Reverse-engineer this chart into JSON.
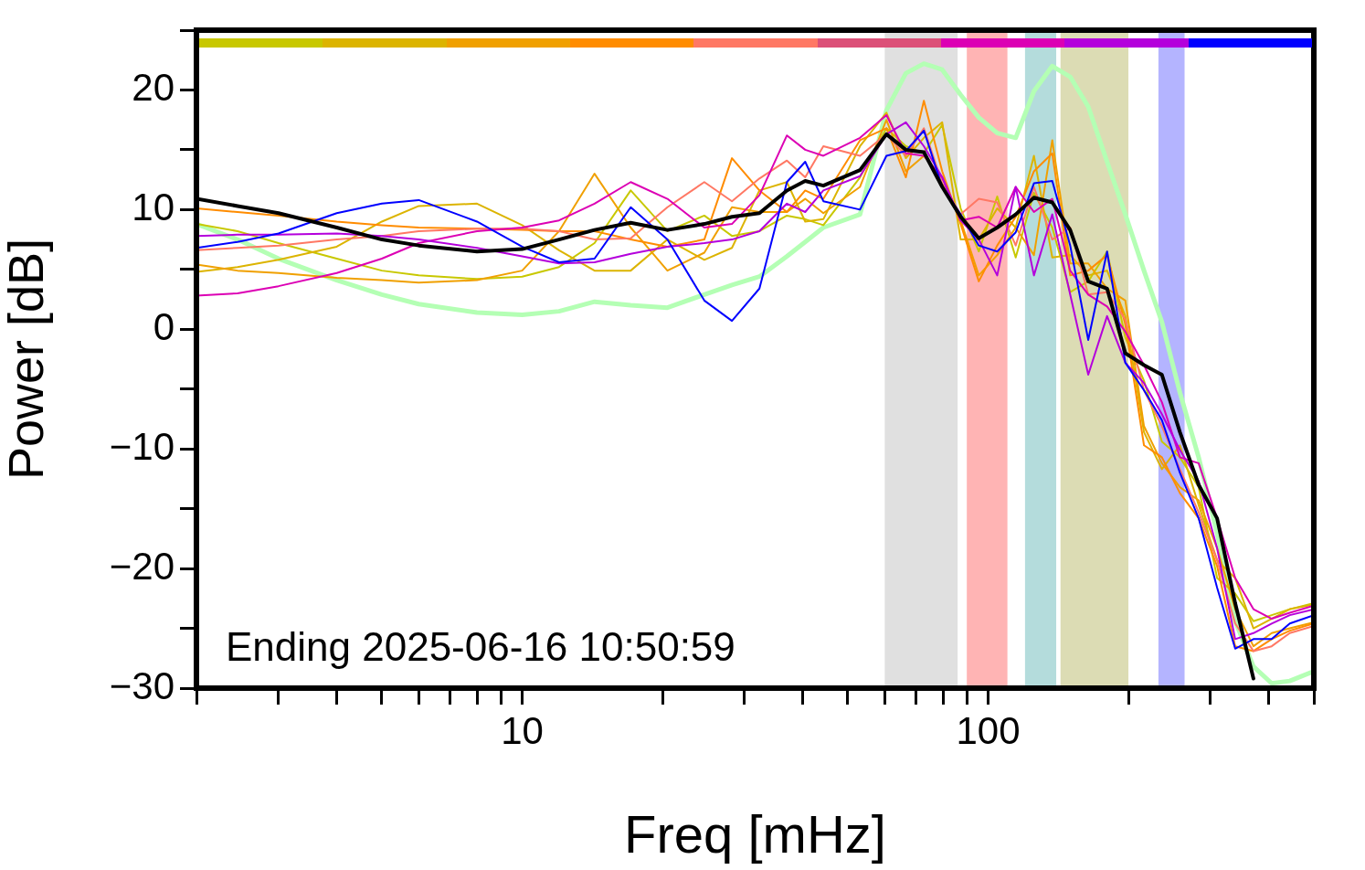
{
  "chart_data": {
    "type": "line",
    "xlabel": "Freq [mHz]",
    "ylabel": "Power [dB]",
    "log": "x",
    "annotations": [
      "Ending 2025-06-16 10:50:59"
    ],
    "x": [
      2,
      2.45,
      3,
      4,
      5,
      6,
      8,
      10,
      12,
      14.3,
      17.1,
      20.5,
      24.6,
      28.2,
      32.3,
      37,
      40.5,
      44.3,
      53.1,
      60.5,
      66.6,
      72.8,
      79.7,
      87.3,
      95.5,
      104.6,
      114.6,
      125.4,
      137.3,
      150,
      164,
      180,
      197,
      216,
      236,
      258,
      283,
      310,
      339,
      371,
      406,
      444,
      500
    ],
    "xlim": [
      2,
      500
    ],
    "xticks": [
      {
        "value": 2,
        "label": null
      },
      {
        "value": 3,
        "label": null
      },
      {
        "value": 4,
        "label": null
      },
      {
        "value": 5,
        "label": null
      },
      {
        "value": 6,
        "label": null
      },
      {
        "value": 7,
        "label": null
      },
      {
        "value": 8,
        "label": null
      },
      {
        "value": 9,
        "label": null
      },
      10,
      {
        "value": 20,
        "label": null
      },
      {
        "value": 30,
        "label": null
      },
      {
        "value": 40,
        "label": null
      },
      {
        "value": 50,
        "label": null
      },
      {
        "value": 60,
        "label": null
      },
      {
        "value": 70,
        "label": null
      },
      {
        "value": 80,
        "label": null
      },
      {
        "value": 90,
        "label": null
      },
      100,
      {
        "value": 200,
        "label": null
      },
      {
        "value": 300,
        "label": null
      },
      {
        "value": 400,
        "label": null
      },
      {
        "value": 500,
        "label": null
      }
    ],
    "ylim": [
      -30,
      25
    ],
    "yticks": [
      -30,
      {
        "value": -25,
        "label": null
      },
      -20,
      {
        "value": -15,
        "label": null
      },
      -10,
      {
        "value": -5,
        "label": null
      },
      0,
      {
        "value": 5,
        "label": null
      },
      10,
      {
        "value": 15,
        "label": null
      },
      20,
      {
        "value": 25,
        "label": null
      }
    ],
    "bands": [
      {
        "axis": "x",
        "from": 60,
        "to": 86,
        "color": "#e0e0e0"
      },
      {
        "axis": "x",
        "from": 90,
        "to": 110,
        "color": "#ffb4b4"
      },
      {
        "axis": "x",
        "from": 120,
        "to": 140,
        "color": "#b4dcdc"
      },
      {
        "axis": "x",
        "from": 143,
        "to": 200,
        "color": "#dcdcb4"
      },
      {
        "axis": "x",
        "from": 232,
        "to": 264,
        "color": "#b4b4ff"
      }
    ],
    "series": [
      {
        "color": "#b4ffb4",
        "values": [
          8.8,
          7.5,
          5.9,
          4.1,
          2.9,
          2.1,
          1.4,
          1.2,
          1.5,
          2.3,
          2.0,
          1.8,
          2.9,
          3.7,
          4.4,
          6.1,
          7.3,
          8.5,
          9.6,
          18.3,
          21.4,
          22.2,
          21.7,
          19.6,
          17.7,
          16.4,
          16.0,
          19.9,
          22.0,
          21.1,
          18.6,
          14.0,
          9.6,
          4.9,
          0.6,
          -5.3,
          -10.7,
          -17.0,
          -24.4,
          -28.2,
          -29.6,
          -29.4,
          -28.6
        ]
      },
      {
        "color": "#c8c800",
        "values": [
          8.8,
          8.2,
          7.2,
          5.9,
          4.9,
          4.5,
          4.2,
          4.4,
          5.2,
          7.2,
          11.6,
          8.2,
          9.5,
          7.8,
          8.2,
          9.5,
          9.2,
          8.7,
          12.7,
          16.8,
          15.3,
          14.7,
          17.1,
          10.1,
          6.5,
          11.1,
          6.0,
          11.4,
          8.5,
          3.1,
          4.0,
          6.5,
          -0.7,
          -4.3,
          -9.4,
          -10.7,
          -13.2,
          -20.8,
          -22.1,
          -24.4,
          -23.9,
          -23.4,
          -22.9
        ]
      },
      {
        "color": "#dcb400",
        "values": [
          4.8,
          5.2,
          5.8,
          6.9,
          9.0,
          10.3,
          10.5,
          8.7,
          6.6,
          4.9,
          4.9,
          7.5,
          5.8,
          6.8,
          11.6,
          12.3,
          9.0,
          9.2,
          15.3,
          18.1,
          14.3,
          16.0,
          17.3,
          7.5,
          7.5,
          10.1,
          8.5,
          14.5,
          6.0,
          6.2,
          4.5,
          4.9,
          1.1,
          -8.6,
          -11.7,
          -9.7,
          -14.7,
          -19.3,
          -20.8,
          -25.0,
          -24.2,
          -23.4,
          -23.0
        ]
      },
      {
        "color": "#f0a000",
        "values": [
          5.4,
          4.9,
          4.7,
          4.3,
          4.1,
          3.9,
          4.1,
          4.9,
          8.2,
          13.0,
          8.5,
          4.9,
          6.4,
          10.2,
          9.8,
          9.8,
          10.9,
          9.7,
          11.9,
          17.5,
          13.2,
          14.5,
          12.7,
          9.1,
          4.5,
          6.2,
          8.5,
          6.2,
          15.8,
          5.5,
          5.5,
          3.4,
          2.4,
          -8.1,
          -11.2,
          -13.2,
          -14.3,
          -18.3,
          -23.4,
          -26.5,
          -25.4,
          -25.0,
          -24.5
        ]
      },
      {
        "color": "#ff8c00",
        "values": [
          10.1,
          9.8,
          9.5,
          9.0,
          8.7,
          8.5,
          8.4,
          8.3,
          8.2,
          8.2,
          7.5,
          6.9,
          7.5,
          14.3,
          11.6,
          9.8,
          11.6,
          10.9,
          15.8,
          16.8,
          12.7,
          19.1,
          13.2,
          8.8,
          4.0,
          7.0,
          9.4,
          13.2,
          14.7,
          4.5,
          4.9,
          6.2,
          0.4,
          -9.7,
          -10.7,
          -13.7,
          -15.8,
          -19.8,
          -26.5,
          -26.9,
          -25.9,
          -25.2,
          -24.6
        ]
      },
      {
        "color": "#ff7864",
        "values": [
          6.6,
          6.8,
          7.0,
          7.5,
          7.8,
          8.2,
          8.4,
          8.4,
          8.2,
          7.5,
          7.6,
          10.2,
          12.3,
          10.7,
          12.6,
          14.1,
          12.7,
          15.3,
          14.5,
          16.3,
          14.5,
          16.8,
          12.2,
          9.6,
          10.9,
          10.6,
          7.0,
          11.9,
          7.5,
          8.5,
          2.9,
          3.1,
          0.8,
          -5.1,
          -8.1,
          -11.7,
          -15.3,
          -19.3,
          -24.6,
          -26.9,
          -26.5,
          -25.4,
          -24.8
        ]
      },
      {
        "color": "#dc00b4",
        "values": [
          2.8,
          3.0,
          3.6,
          4.7,
          5.9,
          7.2,
          8.2,
          8.5,
          9.1,
          10.5,
          12.3,
          10.9,
          8.5,
          8.8,
          11.2,
          16.2,
          15.0,
          14.5,
          16.0,
          17.9,
          14.7,
          14.5,
          12.7,
          9.1,
          9.4,
          8.5,
          11.9,
          9.8,
          10.9,
          4.9,
          2.9,
          1.9,
          -0.2,
          -3.0,
          -6.1,
          -10.7,
          -11.2,
          -15.8,
          -20.8,
          -23.4,
          -24.2,
          -23.7,
          -23.1
        ]
      },
      {
        "color": "#b400dc",
        "values": [
          7.8,
          7.9,
          7.9,
          8.0,
          7.8,
          7.5,
          6.8,
          6.1,
          5.5,
          5.6,
          6.3,
          6.9,
          7.2,
          7.5,
          8.2,
          10.5,
          9.8,
          11.6,
          12.8,
          16.3,
          17.3,
          15.3,
          12.7,
          9.1,
          7.5,
          4.5,
          11.9,
          4.5,
          9.6,
          2.9,
          -3.8,
          1.1,
          -2.8,
          -4.5,
          -7.1,
          -10.1,
          -12.7,
          -18.3,
          -25.9,
          -25.4,
          -24.6,
          -23.9,
          -23.4
        ]
      },
      {
        "color": "#0000ff",
        "values": [
          6.8,
          7.3,
          8.0,
          9.7,
          10.5,
          10.8,
          9.0,
          6.9,
          5.6,
          5.9,
          10.2,
          7.5,
          2.4,
          0.7,
          3.4,
          12.3,
          14.0,
          10.7,
          10.0,
          14.5,
          14.9,
          16.6,
          11.9,
          9.6,
          7.0,
          6.5,
          8.1,
          12.2,
          12.4,
          7.0,
          -0.9,
          6.5,
          -2.8,
          -5.1,
          -7.6,
          -12.0,
          -15.8,
          -21.6,
          -26.7,
          -25.9,
          -25.9,
          -24.6,
          -23.9
        ]
      },
      {
        "color": "#000000",
        "values": [
          10.9,
          10.3,
          9.7,
          8.5,
          7.5,
          7.0,
          6.5,
          6.7,
          7.5,
          8.3,
          8.9,
          8.3,
          8.8,
          9.4,
          9.7,
          11.6,
          12.4,
          12.0,
          13.3,
          16.3,
          15.0,
          14.8,
          11.9,
          9.4,
          7.6,
          8.5,
          9.6,
          11.0,
          10.6,
          8.3,
          4.0,
          3.4,
          -2.0,
          -3.0,
          -3.8,
          -8.6,
          -13.0,
          -15.8,
          -22.9,
          -29.2,
          null,
          null,
          null
        ]
      }
    ]
  }
}
